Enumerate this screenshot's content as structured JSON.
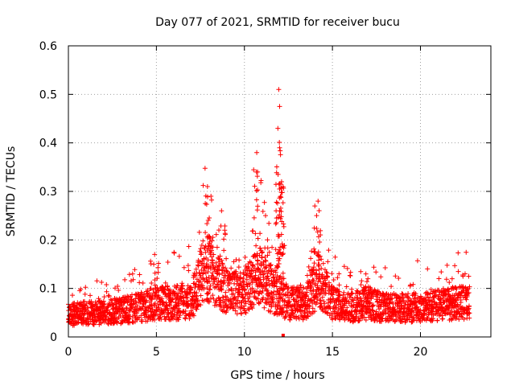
{
  "chart_data": {
    "type": "scatter",
    "title": "Day 077 of 2021, SRMTID for receiver bucu",
    "xlabel": "GPS time / hours",
    "ylabel": "SRMTID / TECUs",
    "xlim": [
      0,
      24
    ],
    "ylim": [
      0,
      0.6
    ],
    "xticks": [
      0,
      5,
      10,
      15,
      20
    ],
    "xtick_labels": [
      "0",
      "5",
      "10",
      "15",
      "20"
    ],
    "yticks": [
      0,
      0.1,
      0.2,
      0.3,
      0.4,
      0.5,
      0.6
    ],
    "ytick_labels": [
      "0",
      "0.1",
      "0.2",
      "0.3",
      "0.4",
      "0.5",
      "0.6"
    ],
    "grid": true,
    "marker": "+",
    "color": "#ff0000",
    "series": [
      {
        "name": "SRMTID",
        "baseline_envelope": [
          [
            0.0,
            0.045
          ],
          [
            1.0,
            0.05
          ],
          [
            2.0,
            0.05
          ],
          [
            3.0,
            0.055
          ],
          [
            4.0,
            0.06
          ],
          [
            5.0,
            0.07
          ],
          [
            6.0,
            0.07
          ],
          [
            7.0,
            0.075
          ],
          [
            7.8,
            0.15
          ],
          [
            8.5,
            0.12
          ],
          [
            9.0,
            0.09
          ],
          [
            10.0,
            0.09
          ],
          [
            10.8,
            0.13
          ],
          [
            11.5,
            0.1
          ],
          [
            12.5,
            0.07
          ],
          [
            13.5,
            0.07
          ],
          [
            14.2,
            0.12
          ],
          [
            15.0,
            0.07
          ],
          [
            16.0,
            0.06
          ],
          [
            17.0,
            0.07
          ],
          [
            18.0,
            0.06
          ],
          [
            19.0,
            0.06
          ],
          [
            20.0,
            0.06
          ],
          [
            21.0,
            0.065
          ],
          [
            22.0,
            0.07
          ],
          [
            22.8,
            0.07
          ]
        ],
        "peaks": [
          {
            "x": 4.9,
            "y": 0.17
          },
          {
            "x": 7.9,
            "y": 0.31
          },
          {
            "x": 8.1,
            "y": 0.29
          },
          {
            "x": 8.7,
            "y": 0.26
          },
          {
            "x": 10.7,
            "y": 0.38
          },
          {
            "x": 10.75,
            "y": 0.34
          },
          {
            "x": 11.2,
            "y": 0.25
          },
          {
            "x": 11.95,
            "y": 0.51
          },
          {
            "x": 12.0,
            "y": 0.475
          },
          {
            "x": 11.9,
            "y": 0.43
          },
          {
            "x": 12.0,
            "y": 0.39
          },
          {
            "x": 12.0,
            "y": 0.305
          },
          {
            "x": 12.0,
            "y": 0.26
          },
          {
            "x": 14.0,
            "y": 0.27
          },
          {
            "x": 14.1,
            "y": 0.25
          },
          {
            "x": 16.9,
            "y": 0.13
          },
          {
            "x": 21.8,
            "y": 0.12
          }
        ]
      }
    ]
  }
}
